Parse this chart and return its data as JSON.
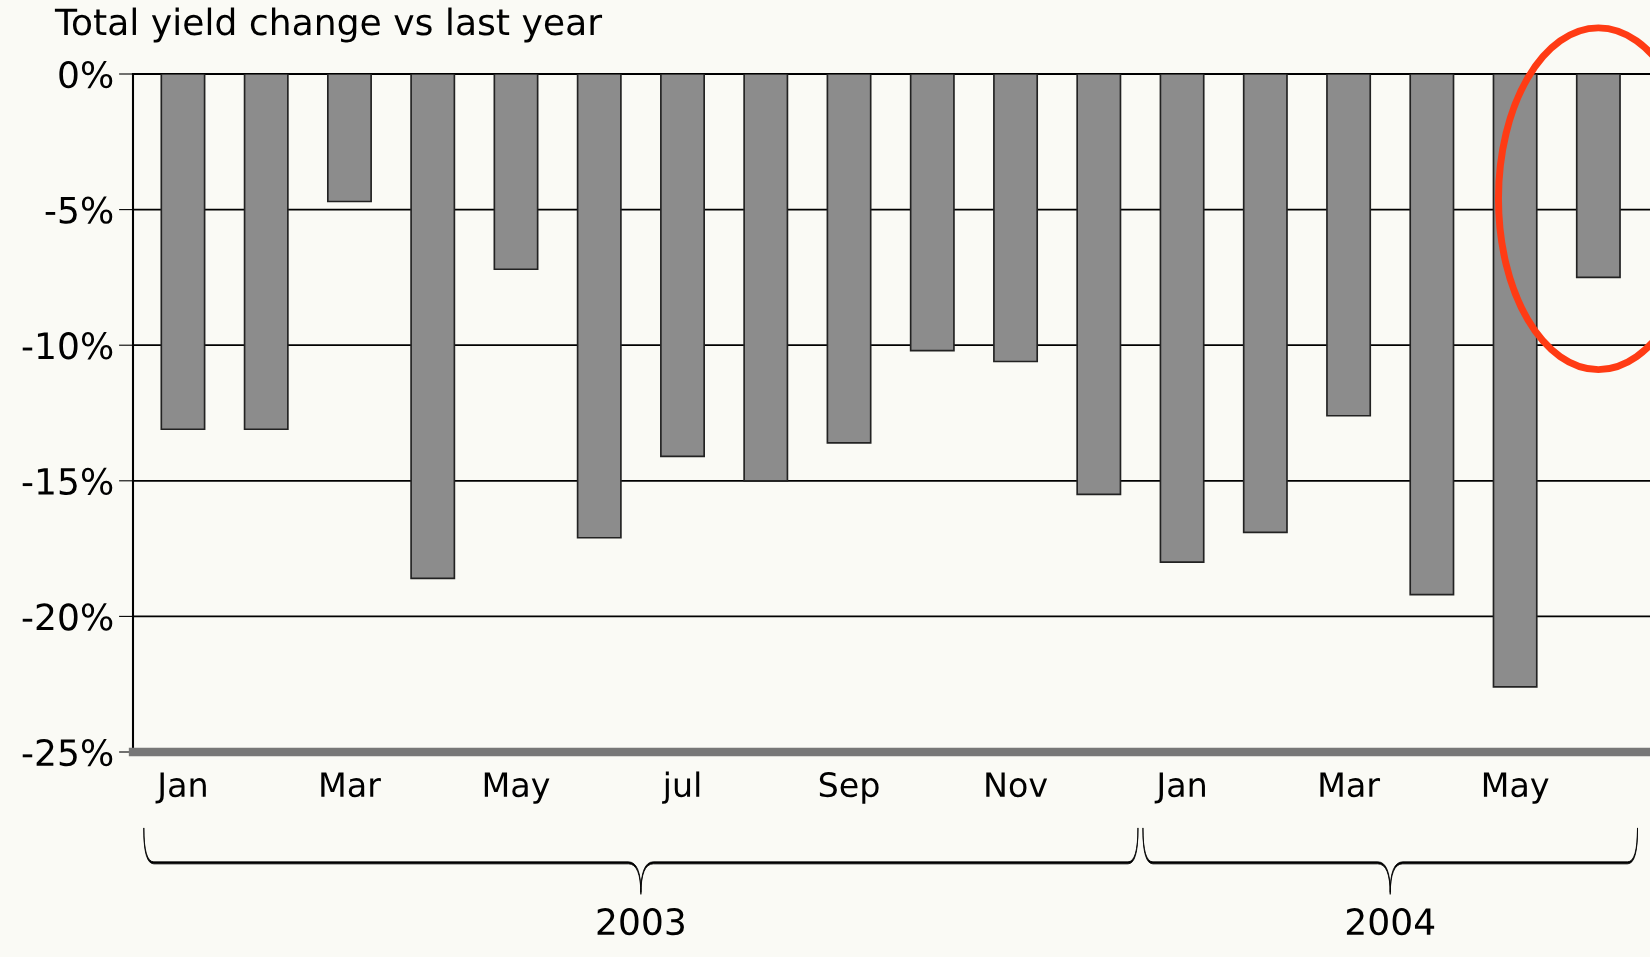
{
  "chart_data": {
    "type": "bar",
    "title": "Total yield change vs last year",
    "categories": [
      "Jan",
      null,
      "Mar",
      null,
      "May",
      null,
      "jul",
      null,
      "Sep",
      null,
      "Nov",
      null,
      "Jan",
      null,
      "Mar",
      null,
      "May",
      null
    ],
    "values": [
      -13.1,
      -13.1,
      -4.7,
      -18.6,
      -7.2,
      -17.1,
      -14.1,
      -15.0,
      -13.6,
      -10.2,
      -10.6,
      -15.5,
      -18.0,
      -16.9,
      -12.6,
      -19.2,
      -22.6,
      -7.5
    ],
    "color": "#8c8c8c",
    "ylim": [
      -25,
      0
    ],
    "yticks": [
      {
        "value": 0,
        "label": "0%"
      },
      {
        "value": -5,
        "label": "-5%"
      },
      {
        "value": -10,
        "label": "-10%"
      },
      {
        "value": -15,
        "label": "-15%"
      },
      {
        "value": -20,
        "label": "-20%"
      },
      {
        "value": -25,
        "label": "-25%"
      }
    ],
    "grid": "y",
    "annotations": [
      "2003",
      "2004"
    ]
  }
}
